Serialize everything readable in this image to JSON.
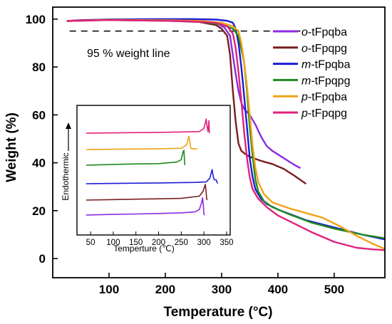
{
  "chart_data": [
    {
      "type": "line",
      "title": "",
      "xlabel": "Temperature (°C)",
      "ylabel": "Weight (%)",
      "xlim": [
        0,
        590
      ],
      "ylim": [
        -8,
        105
      ],
      "xticks": [
        100,
        200,
        300,
        400,
        500
      ],
      "yticks": [
        0,
        20,
        40,
        60,
        80,
        100
      ],
      "grid": false,
      "legend_position": "top-right",
      "annotations": [
        {
          "text": "95 % weight line",
          "y": 95
        }
      ],
      "series": [
        {
          "name_prefix": "o",
          "name_suffix": "-tFpqba",
          "color": "#8B2BE2",
          "points": [
            [
              25,
              99.2
            ],
            [
              50,
              99.6
            ],
            [
              100,
              99.8
            ],
            [
              200,
              99.7
            ],
            [
              260,
              99.3
            ],
            [
              290,
              98.4
            ],
            [
              305,
              96.5
            ],
            [
              315,
              93
            ],
            [
              320,
              85
            ],
            [
              325,
              77
            ],
            [
              330,
              70
            ],
            [
              335,
              65
            ],
            [
              340,
              62.5
            ],
            [
              350,
              60
            ],
            [
              360,
              56
            ],
            [
              370,
              51
            ],
            [
              380,
              47
            ],
            [
              390,
              45
            ],
            [
              400,
              43.5
            ],
            [
              410,
              42
            ],
            [
              420,
              40.5
            ],
            [
              430,
              39
            ],
            [
              440,
              37.8
            ]
          ]
        },
        {
          "name_prefix": "o",
          "name_suffix": "-tFpqpg",
          "color": "#7A1E1E",
          "points": [
            [
              25,
              99.2
            ],
            [
              50,
              99.5
            ],
            [
              100,
              99.6
            ],
            [
              200,
              99.3
            ],
            [
              260,
              98.8
            ],
            [
              290,
              97.5
            ],
            [
              300,
              96
            ],
            [
              310,
              93
            ],
            [
              315,
              85
            ],
            [
              320,
              70
            ],
            [
              325,
              57
            ],
            [
              330,
              48
            ],
            [
              335,
              45
            ],
            [
              340,
              44
            ],
            [
              350,
              42.5
            ],
            [
              370,
              40.8
            ],
            [
              390,
              39.5
            ],
            [
              410,
              37.5
            ],
            [
              430,
              34.5
            ],
            [
              450,
              31.2
            ]
          ]
        },
        {
          "name_prefix": "m",
          "name_suffix": "-tFpqba",
          "color": "#1C1CD6",
          "points": [
            [
              25,
              99.2
            ],
            [
              100,
              99.9
            ],
            [
              200,
              100
            ],
            [
              250,
              100
            ],
            [
              290,
              99.8
            ],
            [
              310,
              99.3
            ],
            [
              320,
              98.5
            ],
            [
              325,
              96
            ],
            [
              330,
              90
            ],
            [
              335,
              80
            ],
            [
              340,
              68
            ],
            [
              345,
              55
            ],
            [
              350,
              42
            ],
            [
              355,
              34
            ],
            [
              360,
              29
            ],
            [
              370,
              25
            ],
            [
              380,
              22.8
            ],
            [
              400,
              20.5
            ],
            [
              450,
              16
            ],
            [
              500,
              13
            ],
            [
              550,
              10
            ],
            [
              590,
              8
            ]
          ]
        },
        {
          "name_prefix": "m",
          "name_suffix": "-tFpqpg",
          "color": "#1E8A1E",
          "points": [
            [
              25,
              99.2
            ],
            [
              100,
              99.7
            ],
            [
              200,
              99.5
            ],
            [
              260,
              99
            ],
            [
              300,
              97.8
            ],
            [
              320,
              96
            ],
            [
              330,
              93
            ],
            [
              340,
              82
            ],
            [
              345,
              70
            ],
            [
              350,
              55
            ],
            [
              355,
              43
            ],
            [
              360,
              33
            ],
            [
              365,
              28
            ],
            [
              375,
              24
            ],
            [
              390,
              21.5
            ],
            [
              420,
              18.5
            ],
            [
              460,
              15
            ],
            [
              500,
              12.5
            ],
            [
              550,
              10
            ],
            [
              590,
              8.5
            ]
          ]
        },
        {
          "name_prefix": "p",
          "name_suffix": "-tFpqba",
          "color": "#F0A216",
          "points": [
            [
              25,
              99.2
            ],
            [
              100,
              99.7
            ],
            [
              200,
              99.5
            ],
            [
              260,
              99.3
            ],
            [
              300,
              98.5
            ],
            [
              320,
              97
            ],
            [
              330,
              95
            ],
            [
              335,
              90
            ],
            [
              340,
              82
            ],
            [
              345,
              72
            ],
            [
              350,
              60
            ],
            [
              355,
              47
            ],
            [
              360,
              38
            ],
            [
              365,
              32
            ],
            [
              375,
              27
            ],
            [
              390,
              23.5
            ],
            [
              420,
              21
            ],
            [
              450,
              19
            ],
            [
              480,
              17
            ],
            [
              510,
              13.5
            ],
            [
              540,
              9.5
            ],
            [
              570,
              6
            ],
            [
              590,
              4
            ]
          ]
        },
        {
          "name_prefix": "p",
          "name_suffix": "-tFpqpg",
          "color": "#E0227A",
          "points": [
            [
              25,
              99.2
            ],
            [
              100,
              99.6
            ],
            [
              200,
              99.3
            ],
            [
              250,
              99
            ],
            [
              290,
              98.5
            ],
            [
              310,
              97
            ],
            [
              320,
              94
            ],
            [
              325,
              88
            ],
            [
              330,
              78
            ],
            [
              335,
              66
            ],
            [
              340,
              53
            ],
            [
              345,
              42
            ],
            [
              350,
              34
            ],
            [
              355,
              29
            ],
            [
              365,
              25
            ],
            [
              380,
              21.5
            ],
            [
              400,
              18
            ],
            [
              430,
              14.5
            ],
            [
              460,
              11
            ],
            [
              500,
              7
            ],
            [
              540,
              4.5
            ],
            [
              570,
              3.8
            ],
            [
              590,
              3.5
            ]
          ]
        }
      ]
    },
    {
      "type": "line",
      "title": "",
      "xlabel": "Temperture (℃)",
      "ylabel": "Endothermic",
      "xlim": [
        20,
        358
      ],
      "xticks": [
        50,
        100,
        150,
        200,
        250,
        300,
        350
      ],
      "grid": false,
      "series": [
        {
          "color": "#8B2BE2",
          "offset": 5,
          "points": [
            [
              40,
              0
            ],
            [
              100,
              0.04
            ],
            [
              150,
              0.07
            ],
            [
              200,
              0.1
            ],
            [
              250,
              0.14
            ],
            [
              280,
              0.2
            ],
            [
              290,
              0.35
            ],
            [
              295,
              0.8
            ],
            [
              297,
              1.1
            ],
            [
              299,
              0.5
            ],
            [
              300,
              0.05
            ],
            [
              302,
              0
            ]
          ]
        },
        {
          "color": "#7A1E1E",
          "offset": 4,
          "points": [
            [
              40,
              0
            ],
            [
              100,
              0.03
            ],
            [
              150,
              0.06
            ],
            [
              200,
              0.08
            ],
            [
              250,
              0.11
            ],
            [
              290,
              0.25
            ],
            [
              298,
              0.55
            ],
            [
              303,
              1.0
            ],
            [
              305,
              0.5
            ],
            [
              306,
              0.1
            ],
            [
              307,
              0
            ]
          ]
        },
        {
          "color": "#1C1CD6",
          "offset": 3,
          "points": [
            [
              40,
              0
            ],
            [
              100,
              0.02
            ],
            [
              200,
              0.05
            ],
            [
              280,
              0.08
            ],
            [
              305,
              0.12
            ],
            [
              313,
              0.35
            ],
            [
              318,
              0.9
            ],
            [
              321,
              0.4
            ],
            [
              323,
              0.25
            ],
            [
              327,
              0.25
            ],
            [
              330,
              0.02
            ]
          ]
        },
        {
          "color": "#1E8A1E",
          "offset": 2,
          "points": [
            [
              40,
              0
            ],
            [
              100,
              0.05
            ],
            [
              150,
              0.08
            ],
            [
              200,
              0.1
            ],
            [
              240,
              0.2
            ],
            [
              250,
              0.35
            ],
            [
              254,
              0.85
            ],
            [
              256,
              0.95
            ],
            [
              257,
              0.3
            ],
            [
              258,
              0
            ]
          ]
        },
        {
          "color": "#F0A216",
          "offset": 1,
          "points": [
            [
              40,
              0
            ],
            [
              100,
              0.02
            ],
            [
              200,
              0.05
            ],
            [
              250,
              0.08
            ],
            [
              262,
              0.3
            ],
            [
              267,
              0.85
            ],
            [
              269,
              0.5
            ],
            [
              271,
              0.1
            ],
            [
              273,
              0.05
            ],
            [
              285,
              0.05
            ]
          ]
        },
        {
          "color": "#E0227A",
          "offset": 0,
          "points": [
            [
              40,
              0
            ],
            [
              100,
              0.02
            ],
            [
              200,
              0.05
            ],
            [
              290,
              0.1
            ],
            [
              300,
              0.3
            ],
            [
              305,
              0.9
            ],
            [
              307,
              0.4
            ],
            [
              309,
              0.1
            ],
            [
              311,
              0.8
            ],
            [
              312,
              0.05
            ],
            [
              313,
              0
            ]
          ]
        }
      ]
    }
  ]
}
